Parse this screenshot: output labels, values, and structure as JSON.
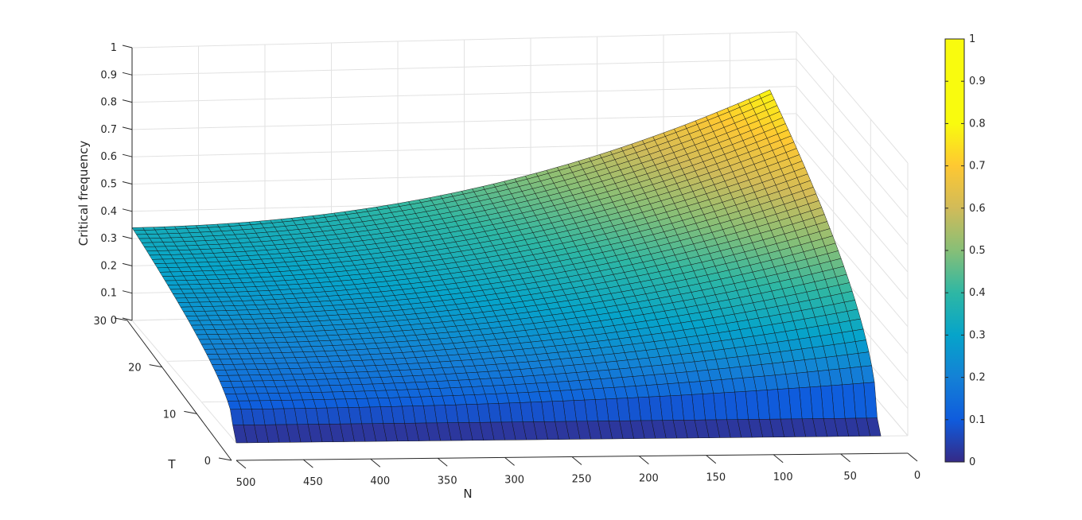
{
  "chart_data": {
    "type": "surface",
    "zlabel": "Critical frequency",
    "xlabel": "N",
    "ylabel": "T",
    "x_ticks": [
      "500",
      "450",
      "400",
      "350",
      "300",
      "250",
      "200",
      "150",
      "100",
      "50",
      "0"
    ],
    "y_ticks": [
      "0",
      "10",
      "20",
      "30"
    ],
    "z_ticks": [
      "0",
      "0.1",
      "0.2",
      "0.3",
      "0.4",
      "0.5",
      "0.6",
      "0.7",
      "0.8",
      "0.9",
      "1"
    ],
    "xlim": [
      0,
      500
    ],
    "ylim": [
      0,
      30
    ],
    "zlim": [
      0,
      1
    ],
    "grid": true,
    "colormap": "parula",
    "colorbar": {
      "ticks": [
        "0",
        "0.1",
        "0.2",
        "0.3",
        "0.4",
        "0.5",
        "0.6",
        "0.7",
        "0.8",
        "0.9",
        "1"
      ],
      "range": [
        0,
        1
      ],
      "placement": "right"
    },
    "surface": {
      "z_at_T0": 0.0,
      "z_at_T1": 0.05,
      "corner_values": [
        {
          "N": 500,
          "T": 30,
          "z": 0.34
        },
        {
          "N": 500,
          "T": 1,
          "z": 0.05
        },
        {
          "N": 20,
          "T": 30,
          "z": 0.79
        },
        {
          "N": 20,
          "T": 1,
          "z": 0.05
        }
      ]
    }
  }
}
